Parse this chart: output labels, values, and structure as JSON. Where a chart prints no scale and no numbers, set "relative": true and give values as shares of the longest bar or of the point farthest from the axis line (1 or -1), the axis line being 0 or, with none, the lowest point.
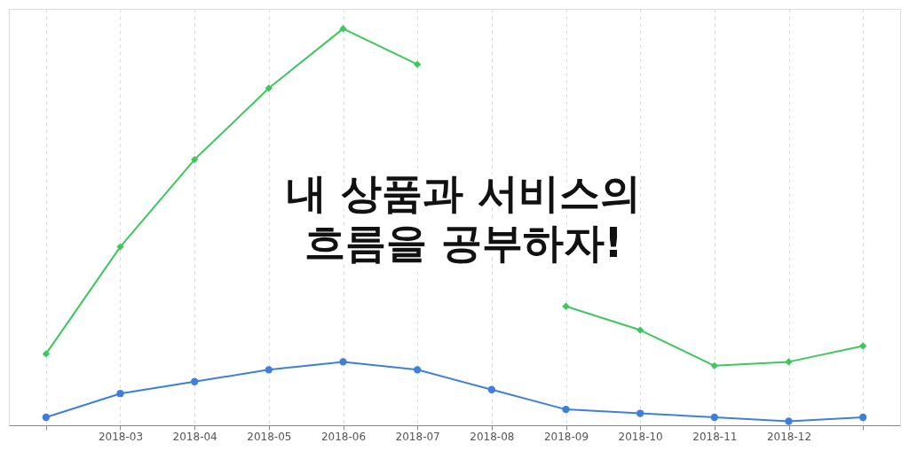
{
  "chart_data": {
    "type": "line",
    "title": "내 상품과 서비스의\n흐름을 공부하자!",
    "relative": true,
    "grid": "x",
    "categories": [
      null,
      "2018-03",
      "2018-04",
      "2018-05",
      "2018-06",
      "2018-07",
      "2018-08",
      "2018-09",
      "2018-10",
      "2018-11",
      "2018-12",
      null
    ],
    "series": [
      {
        "color": "#3ec75e",
        "marker": "diamond",
        "values": [
          0.18,
          0.45,
          0.67,
          0.85,
          1,
          0.91,
          null,
          0.3,
          0.24,
          0.15,
          0.16,
          0.2
        ]
      },
      {
        "color": "#3f7fdc",
        "marker": "circle",
        "values": [
          0.02,
          0.08,
          0.11,
          0.14,
          0.16,
          0.14,
          0.09,
          0.04,
          0.03,
          0.02,
          0.01,
          0.02
        ]
      }
    ]
  }
}
